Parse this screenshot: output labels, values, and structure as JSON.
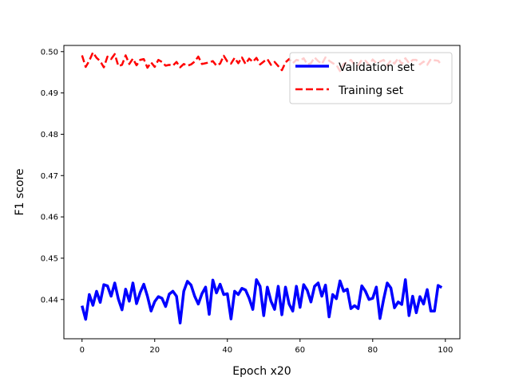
{
  "chart_data": {
    "type": "line",
    "xlabel": "Epoch x20",
    "ylabel": "F1 score",
    "xlim": [
      -5,
      104
    ],
    "ylim": [
      0.4305,
      0.5015
    ],
    "xticks": [
      0,
      20,
      40,
      60,
      80,
      100
    ],
    "yticks": [
      0.44,
      0.45,
      0.46,
      0.47,
      0.48,
      0.49,
      0.5
    ],
    "grid": false,
    "legend_position": "top-right",
    "series": [
      {
        "name": "Validation set",
        "color": "#0000ff",
        "linestyle": "solid",
        "x": [
          0,
          1,
          2,
          3,
          4,
          5,
          6,
          7,
          8,
          9,
          10,
          11,
          12,
          13,
          14,
          15,
          16,
          17,
          18,
          19,
          20,
          21,
          22,
          23,
          24,
          25,
          26,
          27,
          28,
          29,
          30,
          31,
          32,
          33,
          34,
          35,
          36,
          37,
          38,
          39,
          40,
          41,
          42,
          43,
          44,
          45,
          46,
          47,
          48,
          49,
          50,
          51,
          52,
          53,
          54,
          55,
          56,
          57,
          58,
          59,
          60,
          61,
          62,
          63,
          64,
          65,
          66,
          67,
          68,
          69,
          70,
          71,
          72,
          73,
          74,
          75,
          76,
          77,
          78,
          79,
          80,
          81,
          82,
          83,
          84,
          85,
          86,
          87,
          88,
          89,
          90,
          91,
          92,
          93,
          94,
          95,
          96,
          97,
          98,
          99
        ],
        "values": [
          0.4385,
          0.4352,
          0.4412,
          0.4386,
          0.442,
          0.4393,
          0.4436,
          0.4433,
          0.4408,
          0.444,
          0.4401,
          0.4375,
          0.4425,
          0.4396,
          0.444,
          0.439,
          0.4417,
          0.4437,
          0.4408,
          0.4372,
          0.4395,
          0.4407,
          0.4403,
          0.4383,
          0.4413,
          0.442,
          0.4408,
          0.4343,
          0.442,
          0.4444,
          0.4435,
          0.4408,
          0.4389,
          0.4414,
          0.443,
          0.4364,
          0.4447,
          0.4416,
          0.4437,
          0.4412,
          0.4414,
          0.4353,
          0.442,
          0.4412,
          0.4427,
          0.4423,
          0.4403,
          0.4376,
          0.4448,
          0.4432,
          0.4361,
          0.443,
          0.4396,
          0.4376,
          0.4432,
          0.4363,
          0.443,
          0.4389,
          0.4372,
          0.4432,
          0.4381,
          0.4436,
          0.4422,
          0.4394,
          0.4432,
          0.444,
          0.4408,
          0.4435,
          0.4358,
          0.4412,
          0.4402,
          0.4445,
          0.442,
          0.4425,
          0.4378,
          0.4385,
          0.4378,
          0.4433,
          0.442,
          0.44,
          0.4403,
          0.443,
          0.4354,
          0.44,
          0.444,
          0.4428,
          0.438,
          0.4394,
          0.4388,
          0.4448,
          0.4361,
          0.4408,
          0.4368,
          0.4407,
          0.4389,
          0.4424,
          0.4372,
          0.4372,
          0.4434,
          0.4429
        ]
      },
      {
        "name": "Training set",
        "color": "#ff0000",
        "linestyle": "dashed",
        "x": [
          0,
          1,
          2,
          3,
          4,
          5,
          6,
          7,
          8,
          9,
          10,
          11,
          12,
          13,
          14,
          15,
          16,
          17,
          18,
          19,
          20,
          21,
          22,
          23,
          24,
          25,
          26,
          27,
          28,
          29,
          30,
          31,
          32,
          33,
          34,
          35,
          36,
          37,
          38,
          39,
          40,
          41,
          42,
          43,
          44,
          45,
          46,
          47,
          48,
          49,
          50,
          51,
          52,
          53,
          54,
          55,
          56,
          57,
          58,
          59,
          60,
          61,
          62,
          63,
          64,
          65,
          66,
          67,
          68,
          69,
          70,
          71,
          72,
          73,
          74,
          75,
          76,
          77,
          78,
          79,
          80,
          81,
          82,
          83,
          84,
          85,
          86,
          87,
          88,
          89,
          90,
          91,
          92,
          93,
          94,
          95,
          96,
          97,
          98,
          99
        ],
        "values": [
          0.4991,
          0.4963,
          0.4978,
          0.4998,
          0.4985,
          0.4977,
          0.4962,
          0.4988,
          0.4982,
          0.4994,
          0.4965,
          0.4968,
          0.4991,
          0.497,
          0.4983,
          0.4967,
          0.498,
          0.4982,
          0.4961,
          0.4974,
          0.4963,
          0.498,
          0.4975,
          0.4966,
          0.4968,
          0.4966,
          0.4975,
          0.4962,
          0.497,
          0.4966,
          0.4969,
          0.4976,
          0.4988,
          0.497,
          0.4972,
          0.4974,
          0.4977,
          0.4966,
          0.4971,
          0.499,
          0.4976,
          0.4971,
          0.4985,
          0.4972,
          0.4986,
          0.497,
          0.4983,
          0.4975,
          0.4985,
          0.4969,
          0.4976,
          0.4982,
          0.4968,
          0.4975,
          0.4965,
          0.4955,
          0.4974,
          0.4982,
          0.4972,
          0.498,
          0.4978,
          0.4984,
          0.4969,
          0.4972,
          0.4986,
          0.4977,
          0.497,
          0.4986,
          0.4978,
          0.4972,
          0.4968,
          0.4953,
          0.497,
          0.4974,
          0.498,
          0.4969,
          0.4967,
          0.498,
          0.4978,
          0.4968,
          0.4981,
          0.4972,
          0.4976,
          0.498,
          0.4967,
          0.4979,
          0.4971,
          0.4984,
          0.497,
          0.4984,
          0.4972,
          0.498,
          0.498,
          0.4969,
          0.4976,
          0.4968,
          0.4982,
          0.4979,
          0.4978,
          0.4967
        ]
      }
    ]
  }
}
